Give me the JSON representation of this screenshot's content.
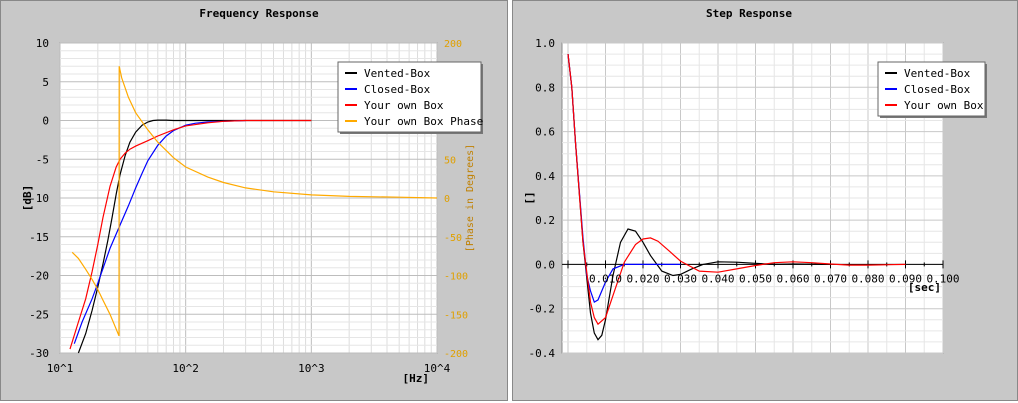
{
  "chart_data": [
    {
      "type": "line",
      "title": "Frequency Response",
      "xscale": "log",
      "xlim": [
        10,
        10000
      ],
      "ylim": [
        -30,
        10
      ],
      "y2lim": [
        -200,
        200
      ],
      "xlabel": "[Hz]",
      "ylabel": "[dB]",
      "y2label": "[Phase in Degrees]",
      "x_ticks": [
        {
          "label": "10^1",
          "value": 10
        },
        {
          "label": "10^2",
          "value": 100
        },
        {
          "label": "10^3",
          "value": 1000
        },
        {
          "label": "10^4",
          "value": 10000
        }
      ],
      "y_ticks": [
        "10",
        "5",
        "0",
        "-5",
        "-10",
        "-15",
        "-20",
        "-25",
        "-30"
      ],
      "y2_ticks": [
        "200",
        "150",
        "100",
        "50",
        "0",
        "-50",
        "-100",
        "-150",
        "-200"
      ],
      "grid": true,
      "legend_position": "top-right",
      "series": [
        {
          "name": "Vented-Box",
          "color": "#000000",
          "axis": "left",
          "x": [
            14,
            16,
            18,
            20,
            22,
            24,
            26,
            28,
            30,
            33,
            36,
            40,
            45,
            50,
            55,
            60,
            70,
            80,
            100,
            150,
            200,
            300,
            500,
            1000
          ],
          "y": [
            -30,
            -27.5,
            -24.5,
            -21.5,
            -18.5,
            -15.5,
            -12.5,
            -9.5,
            -7,
            -4.5,
            -2.8,
            -1.5,
            -0.6,
            -0.2,
            0,
            0.05,
            0.05,
            0,
            0,
            0,
            0,
            0,
            0,
            0
          ]
        },
        {
          "name": "Closed-Box",
          "color": "#0000ff",
          "axis": "left",
          "x": [
            13,
            15,
            18,
            20,
            25,
            30,
            35,
            40,
            45,
            50,
            60,
            70,
            80,
            100,
            120,
            150,
            200,
            300
          ],
          "y": [
            -28.8,
            -26,
            -23,
            -21,
            -16.5,
            -13.5,
            -11,
            -8.7,
            -6.8,
            -5.2,
            -3.2,
            -2,
            -1.3,
            -0.6,
            -0.35,
            -0.2,
            -0.1,
            0
          ]
        },
        {
          "name": "Your own Box",
          "color": "#ff0000",
          "axis": "left",
          "x": [
            12,
            14,
            16,
            18,
            20,
            22,
            25,
            28,
            30,
            33,
            36,
            40,
            50,
            60,
            80,
            100,
            150,
            200,
            300,
            500,
            1000
          ],
          "y": [
            -29.5,
            -26,
            -23,
            -19.5,
            -16,
            -12.5,
            -8.5,
            -6,
            -5,
            -4.2,
            -3.7,
            -3.3,
            -2.6,
            -2,
            -1.2,
            -0.7,
            -0.3,
            -0.1,
            0,
            0,
            0
          ]
        },
        {
          "name": "Your own Box Phase",
          "color": "#ffaa00",
          "axis": "right",
          "x": [
            12.5,
            14,
            16,
            18,
            20,
            22,
            25,
            27,
            29.5,
            29.6,
            31,
            35,
            40,
            50,
            60,
            80,
            100,
            150,
            200,
            300,
            500,
            1000,
            2000,
            5000,
            10000
          ],
          "y": [
            -70,
            -78,
            -92,
            -105,
            -118,
            -132,
            -150,
            -163,
            -178,
            170,
            155,
            130,
            110,
            88,
            72,
            52,
            40,
            27,
            20,
            13,
            8,
            4,
            2,
            1,
            0
          ]
        }
      ]
    },
    {
      "type": "line",
      "title": "Step Response",
      "xlim": [
        0,
        0.1
      ],
      "ylim": [
        -0.4,
        1.0
      ],
      "xlabel": "[sec]",
      "ylabel": "[]",
      "x_ticks": [
        "0.010",
        "0.020",
        "0.030",
        "0.040",
        "0.050",
        "0.060",
        "0.070",
        "0.080",
        "0.090",
        "0.100"
      ],
      "y_ticks": [
        "1.0",
        "0.8",
        "0.6",
        "0.4",
        "0.2",
        "0.0",
        "-0.2",
        "-0.4"
      ],
      "grid": true,
      "legend_position": "top-right",
      "series": [
        {
          "name": "Vented-Box",
          "color": "#000000",
          "x": [
            0,
            0.001,
            0.002,
            0.004,
            0.006,
            0.007,
            0.008,
            0.009,
            0.01,
            0.012,
            0.014,
            0.016,
            0.018,
            0.02,
            0.022,
            0.025,
            0.028,
            0.03,
            0.033,
            0.036,
            0.04,
            0.045,
            0.05,
            0.055,
            0.06,
            0.07
          ],
          "y": [
            0.95,
            0.8,
            0.55,
            0.1,
            -0.22,
            -0.31,
            -0.34,
            -0.32,
            -0.25,
            -0.05,
            0.1,
            0.16,
            0.15,
            0.1,
            0.04,
            -0.03,
            -0.05,
            -0.045,
            -0.02,
            0,
            0.012,
            0.01,
            0.005,
            0,
            0.002,
            0
          ]
        },
        {
          "name": "Closed-Box",
          "color": "#0000ff",
          "x": [
            0,
            0.001,
            0.002,
            0.004,
            0.005,
            0.006,
            0.007,
            0.008,
            0.01,
            0.012,
            0.015,
            0.02,
            0.03
          ],
          "y": [
            0.95,
            0.8,
            0.55,
            0.12,
            -0.05,
            -0.12,
            -0.17,
            -0.16,
            -0.08,
            -0.02,
            0,
            0,
            0
          ]
        },
        {
          "name": "Your own Box",
          "color": "#ff0000",
          "x": [
            0,
            0.001,
            0.002,
            0.004,
            0.006,
            0.007,
            0.008,
            0.01,
            0.012,
            0.015,
            0.018,
            0.02,
            0.022,
            0.024,
            0.027,
            0.03,
            0.035,
            0.04,
            0.045,
            0.05,
            0.055,
            0.06,
            0.065,
            0.07,
            0.075,
            0.08,
            0.09
          ],
          "y": [
            0.95,
            0.8,
            0.55,
            0.1,
            -0.17,
            -0.24,
            -0.27,
            -0.24,
            -0.14,
            0.01,
            0.09,
            0.115,
            0.12,
            0.105,
            0.06,
            0.015,
            -0.03,
            -0.035,
            -0.02,
            -0.005,
            0.008,
            0.012,
            0.008,
            0.002,
            -0.003,
            -0.003,
            0
          ]
        }
      ]
    }
  ]
}
